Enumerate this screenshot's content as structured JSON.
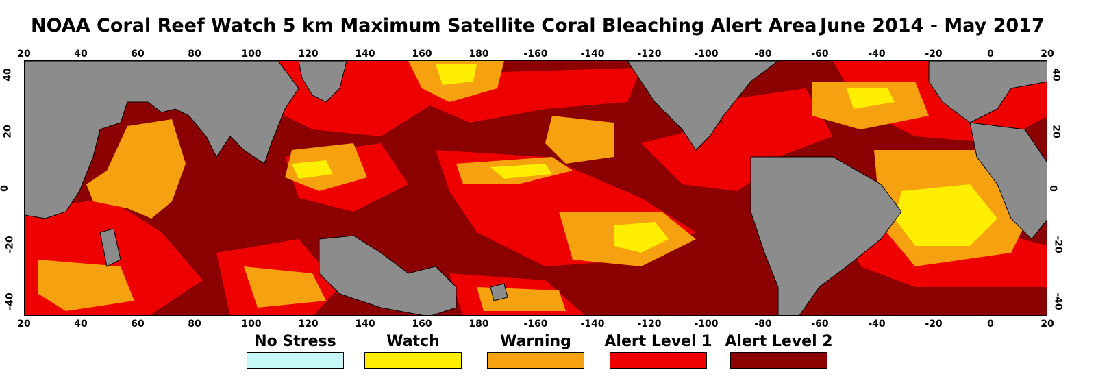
{
  "title": "NOAA Coral Reef Watch 5 km Maximum Satellite Coral Bleaching Alert Area",
  "date_range": "June 2014 - May 2017",
  "x_axis": {
    "tick_labels": [
      "20",
      "40",
      "60",
      "80",
      "100",
      "120",
      "140",
      "160",
      "180",
      "-160",
      "-140",
      "-120",
      "-100",
      "-80",
      "-60",
      "-40",
      "-20",
      "0",
      "20"
    ],
    "lon_range": [
      20,
      380
    ]
  },
  "y_axis": {
    "tick_labels": [
      "40",
      "20",
      "0",
      "-20",
      "-40"
    ],
    "lat_values": [
      40,
      20,
      0,
      -20,
      -40
    ],
    "lat_range": [
      45,
      -45
    ]
  },
  "legend": [
    {
      "label": "No Stress",
      "color": "#c6f8f8"
    },
    {
      "label": "Watch",
      "color": "#ffee00"
    },
    {
      "label": "Warning",
      "color": "#f5a110"
    },
    {
      "label": "Alert Level 1",
      "color": "#ee0000"
    },
    {
      "label": "Alert Level 2",
      "color": "#8b0000"
    }
  ],
  "land_color": "#8c8c8c"
}
